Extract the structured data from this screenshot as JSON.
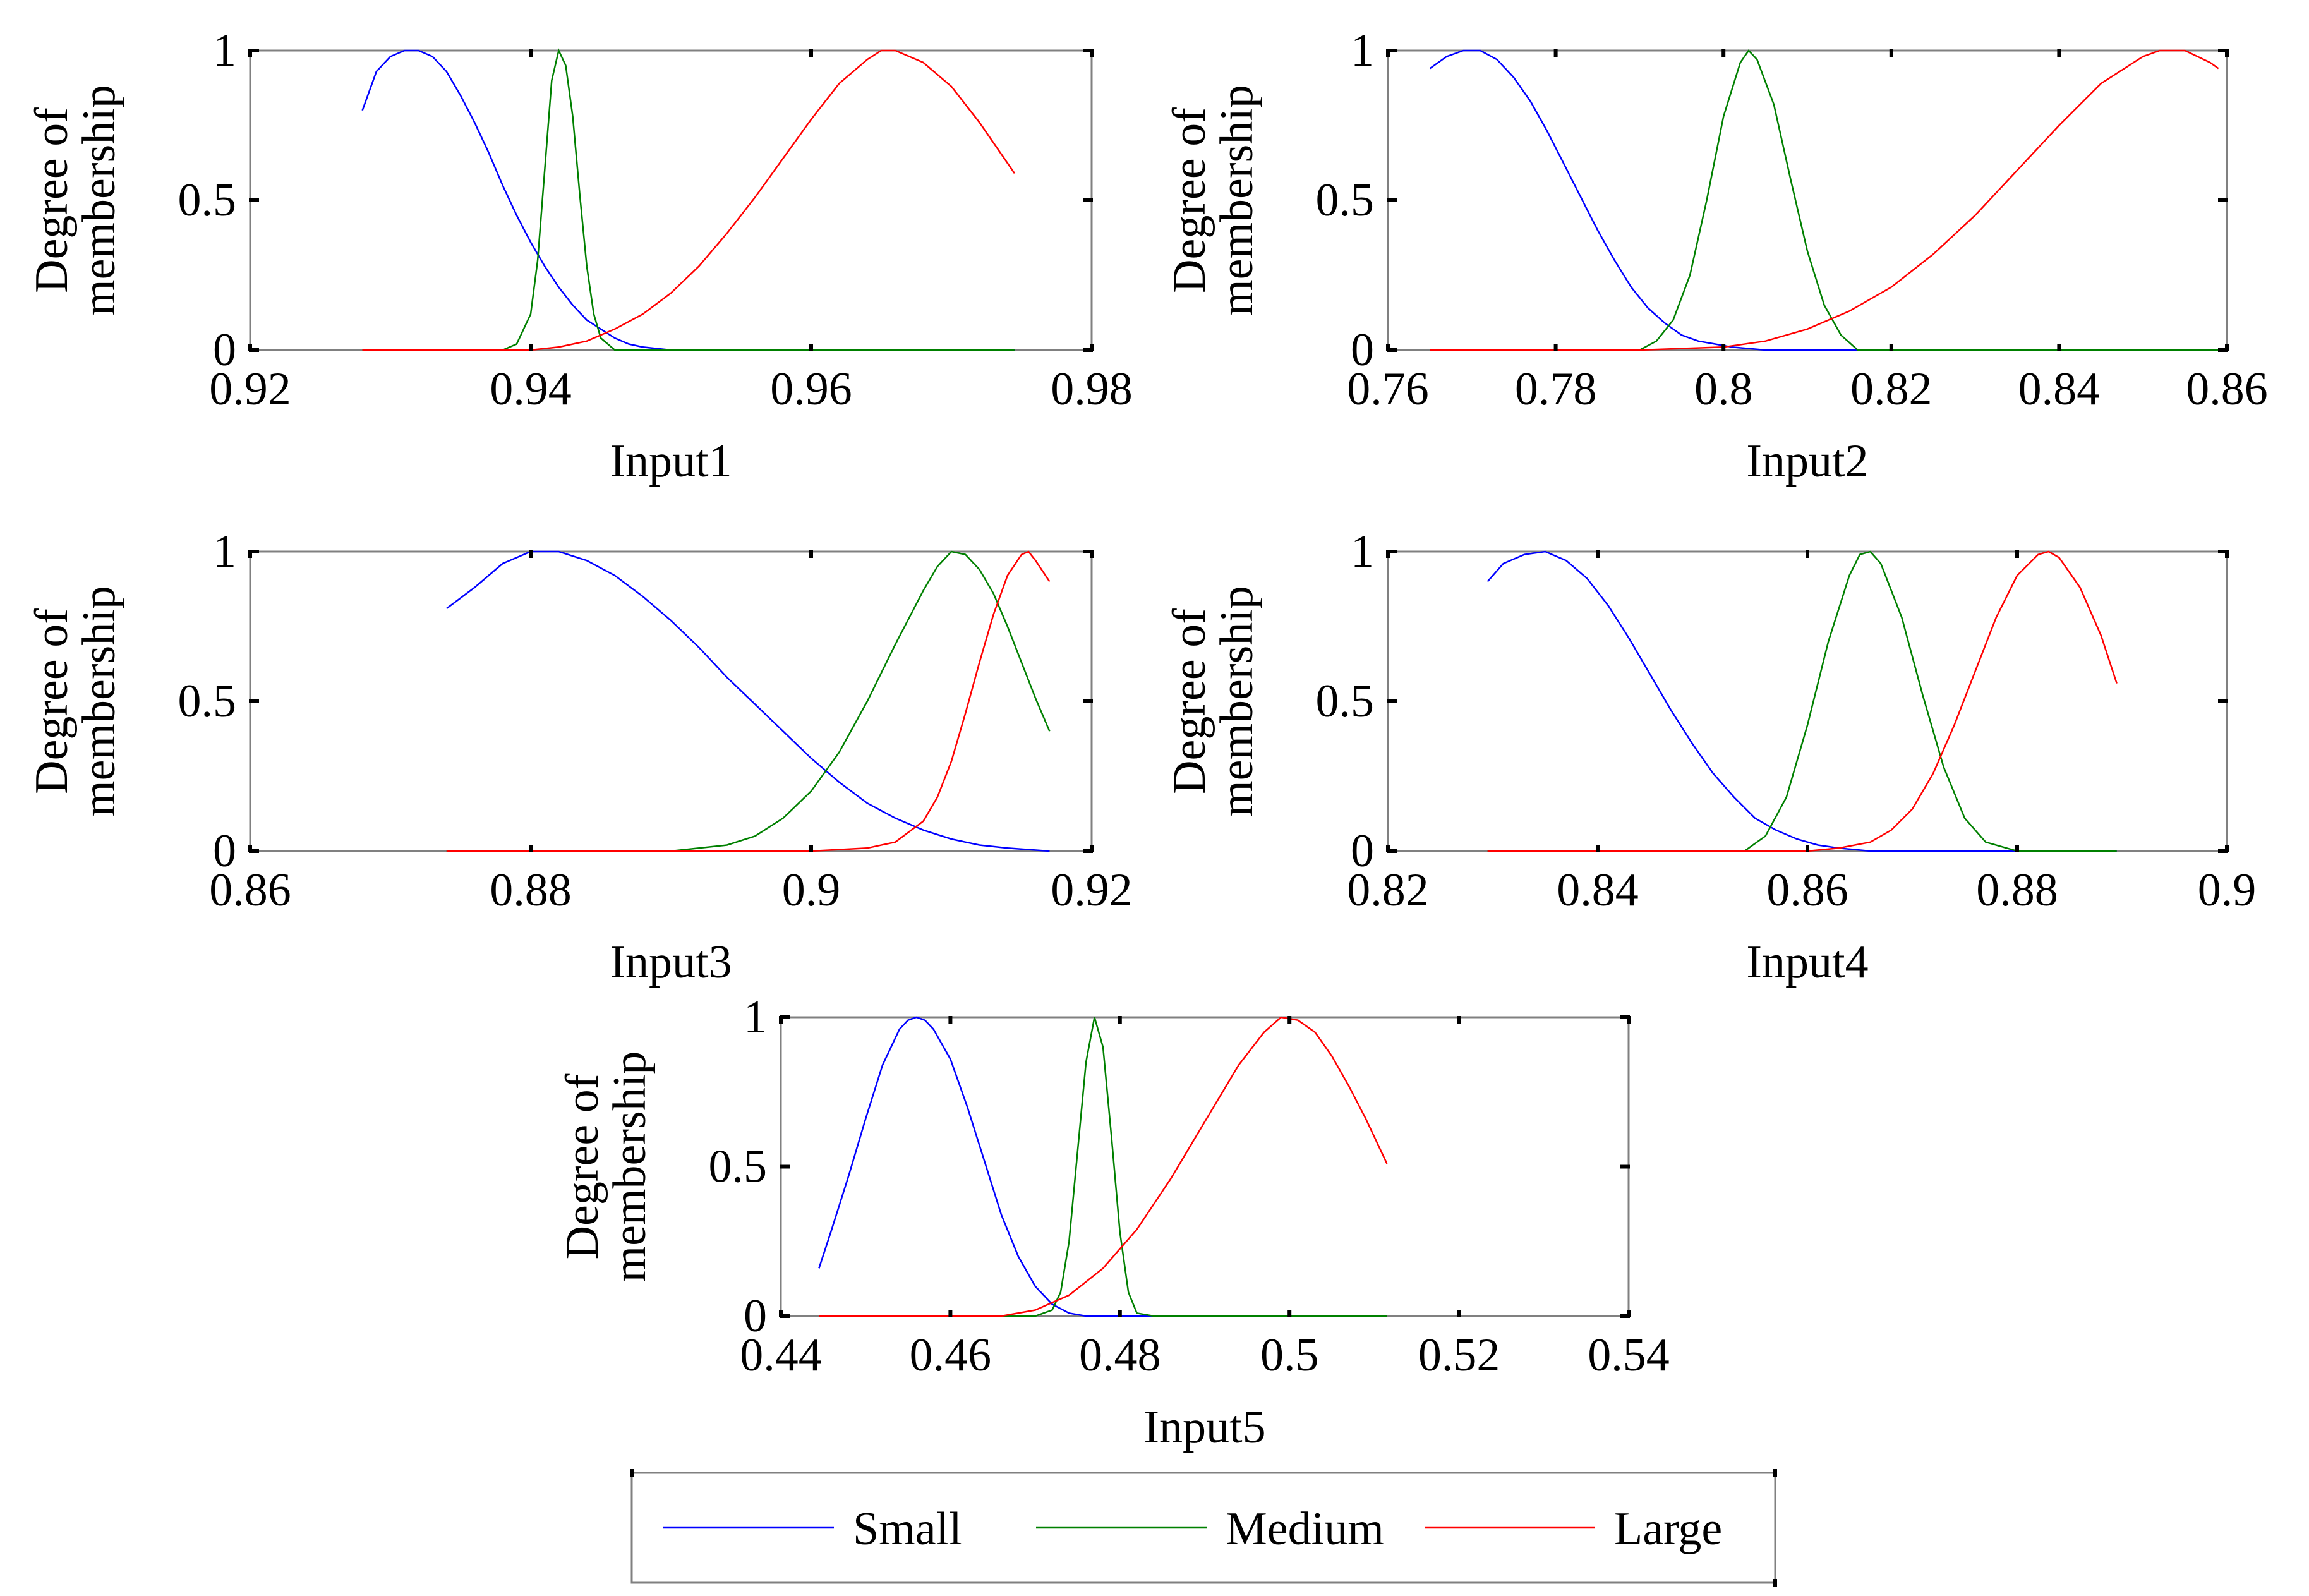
{
  "chart_data": [
    {
      "type": "line",
      "title": "",
      "xlabel": "Input1",
      "ylabel": "Degree of membership",
      "ylabel_lines": [
        "Degree of",
        "membership"
      ],
      "xlim": [
        0.92,
        0.98
      ],
      "ylim": [
        0,
        1
      ],
      "xticks": [
        0.92,
        0.94,
        0.96,
        0.98
      ],
      "xtick_labels": [
        "0.92",
        "0.94",
        "0.96",
        "0.98"
      ],
      "yticks": [
        0,
        0.5,
        1
      ],
      "ytick_labels": [
        "0",
        "0.5",
        "1"
      ],
      "grid": false,
      "series": [
        {
          "name": "Small",
          "x": [
            0.928,
            0.929,
            0.93,
            0.931,
            0.932,
            0.933,
            0.934,
            0.935,
            0.936,
            0.937,
            0.938,
            0.939,
            0.94,
            0.941,
            0.942,
            0.943,
            0.944,
            0.945,
            0.946,
            0.947,
            0.948,
            0.95,
            0.955,
            0.96,
            0.965,
            0.97,
            0.9745
          ],
          "values": [
            0.8,
            0.93,
            0.98,
            1.0,
            1.0,
            0.98,
            0.93,
            0.85,
            0.76,
            0.66,
            0.55,
            0.45,
            0.36,
            0.28,
            0.21,
            0.15,
            0.1,
            0.07,
            0.04,
            0.02,
            0.01,
            0.0,
            0.0,
            0.0,
            0.0,
            0.0,
            0.0
          ]
        },
        {
          "name": "Medium",
          "x": [
            0.928,
            0.935,
            0.938,
            0.939,
            0.94,
            0.9405,
            0.941,
            0.9415,
            0.942,
            0.9425,
            0.943,
            0.9435,
            0.944,
            0.9445,
            0.945,
            0.946,
            0.95,
            0.96,
            0.97,
            0.9745
          ],
          "values": [
            0.0,
            0.0,
            0.0,
            0.02,
            0.12,
            0.3,
            0.6,
            0.9,
            1.0,
            0.95,
            0.78,
            0.52,
            0.28,
            0.12,
            0.04,
            0.0,
            0.0,
            0.0,
            0.0,
            0.0
          ]
        },
        {
          "name": "Large",
          "x": [
            0.928,
            0.935,
            0.94,
            0.942,
            0.944,
            0.946,
            0.948,
            0.95,
            0.952,
            0.954,
            0.956,
            0.958,
            0.96,
            0.962,
            0.964,
            0.965,
            0.966,
            0.968,
            0.97,
            0.972,
            0.9745
          ],
          "values": [
            0.0,
            0.0,
            0.0,
            0.01,
            0.03,
            0.07,
            0.12,
            0.19,
            0.28,
            0.39,
            0.51,
            0.64,
            0.77,
            0.89,
            0.97,
            1.0,
            1.0,
            0.96,
            0.88,
            0.76,
            0.59
          ]
        }
      ]
    },
    {
      "type": "line",
      "title": "",
      "xlabel": "Input2",
      "ylabel": "Degree of membership",
      "ylabel_lines": [
        "Degree of",
        "membership"
      ],
      "xlim": [
        0.76,
        0.86
      ],
      "ylim": [
        0,
        1
      ],
      "xticks": [
        0.76,
        0.78,
        0.8,
        0.82,
        0.84,
        0.86
      ],
      "xtick_labels": [
        "0.76",
        "0.78",
        "0.8",
        "0.82",
        "0.84",
        "0.86"
      ],
      "yticks": [
        0,
        0.5,
        1
      ],
      "ytick_labels": [
        "0",
        "0.5",
        "1"
      ],
      "grid": false,
      "series": [
        {
          "name": "Small",
          "x": [
            0.765,
            0.767,
            0.769,
            0.771,
            0.773,
            0.775,
            0.777,
            0.779,
            0.781,
            0.783,
            0.785,
            0.787,
            0.789,
            0.791,
            0.793,
            0.795,
            0.797,
            0.799,
            0.801,
            0.805,
            0.81,
            0.82,
            0.84,
            0.859
          ],
          "values": [
            0.94,
            0.98,
            1.0,
            1.0,
            0.97,
            0.91,
            0.83,
            0.73,
            0.62,
            0.51,
            0.4,
            0.3,
            0.21,
            0.14,
            0.09,
            0.05,
            0.03,
            0.02,
            0.01,
            0.0,
            0.0,
            0.0,
            0.0,
            0.0
          ]
        },
        {
          "name": "Medium",
          "x": [
            0.765,
            0.785,
            0.79,
            0.792,
            0.794,
            0.796,
            0.798,
            0.8,
            0.802,
            0.803,
            0.804,
            0.806,
            0.808,
            0.81,
            0.812,
            0.814,
            0.816,
            0.83,
            0.859
          ],
          "values": [
            0.0,
            0.0,
            0.0,
            0.03,
            0.1,
            0.25,
            0.5,
            0.78,
            0.96,
            1.0,
            0.97,
            0.82,
            0.57,
            0.33,
            0.15,
            0.05,
            0.0,
            0.0,
            0.0
          ]
        },
        {
          "name": "Large",
          "x": [
            0.765,
            0.79,
            0.795,
            0.8,
            0.805,
            0.81,
            0.815,
            0.82,
            0.825,
            0.83,
            0.835,
            0.84,
            0.845,
            0.85,
            0.852,
            0.855,
            0.858,
            0.859
          ],
          "values": [
            0.0,
            0.0,
            0.005,
            0.01,
            0.03,
            0.07,
            0.13,
            0.21,
            0.32,
            0.45,
            0.6,
            0.75,
            0.89,
            0.98,
            1.0,
            1.0,
            0.96,
            0.94
          ]
        }
      ]
    },
    {
      "type": "line",
      "title": "",
      "xlabel": "Input3",
      "ylabel": "Degree of membership",
      "ylabel_lines": [
        "Degree of",
        "membership"
      ],
      "xlim": [
        0.86,
        0.92
      ],
      "ylim": [
        0,
        1
      ],
      "xticks": [
        0.86,
        0.88,
        0.9,
        0.92
      ],
      "xtick_labels": [
        "0.86",
        "0.88",
        "0.9",
        "0.92"
      ],
      "yticks": [
        0,
        0.5,
        1
      ],
      "ytick_labels": [
        "0",
        "0.5",
        "1"
      ],
      "grid": false,
      "series": [
        {
          "name": "Small",
          "x": [
            0.874,
            0.876,
            0.878,
            0.88,
            0.882,
            0.884,
            0.886,
            0.888,
            0.89,
            0.892,
            0.894,
            0.896,
            0.898,
            0.9,
            0.902,
            0.904,
            0.906,
            0.908,
            0.91,
            0.912,
            0.914,
            0.917
          ],
          "values": [
            0.81,
            0.88,
            0.96,
            1.0,
            1.0,
            0.97,
            0.92,
            0.85,
            0.77,
            0.68,
            0.58,
            0.49,
            0.4,
            0.31,
            0.23,
            0.16,
            0.11,
            0.07,
            0.04,
            0.02,
            0.01,
            0.0
          ]
        },
        {
          "name": "Medium",
          "x": [
            0.874,
            0.89,
            0.894,
            0.896,
            0.898,
            0.9,
            0.902,
            0.904,
            0.906,
            0.908,
            0.909,
            0.91,
            0.911,
            0.912,
            0.913,
            0.914,
            0.915,
            0.916,
            0.917
          ],
          "values": [
            0.0,
            0.0,
            0.02,
            0.05,
            0.11,
            0.2,
            0.33,
            0.5,
            0.69,
            0.87,
            0.95,
            1.0,
            0.99,
            0.94,
            0.86,
            0.75,
            0.63,
            0.51,
            0.4
          ]
        },
        {
          "name": "Large",
          "x": [
            0.874,
            0.9,
            0.904,
            0.906,
            0.908,
            0.909,
            0.91,
            0.911,
            0.912,
            0.913,
            0.914,
            0.915,
            0.9155,
            0.916,
            0.917
          ],
          "values": [
            0.0,
            0.0,
            0.01,
            0.03,
            0.1,
            0.18,
            0.3,
            0.46,
            0.63,
            0.79,
            0.92,
            0.99,
            1.0,
            0.97,
            0.9
          ]
        }
      ]
    },
    {
      "type": "line",
      "title": "",
      "xlabel": "Input4",
      "ylabel": "Degree of membership",
      "ylabel_lines": [
        "Degree of",
        "membership"
      ],
      "xlim": [
        0.82,
        0.9
      ],
      "ylim": [
        0,
        1
      ],
      "xticks": [
        0.82,
        0.84,
        0.86,
        0.88,
        0.9
      ],
      "xtick_labels": [
        "0.82",
        "0.84",
        "0.86",
        "0.88",
        "0.9"
      ],
      "yticks": [
        0,
        0.5,
        1
      ],
      "ytick_labels": [
        "0",
        "0.5",
        "1"
      ],
      "grid": false,
      "series": [
        {
          "name": "Small",
          "x": [
            0.8295,
            0.831,
            0.833,
            0.835,
            0.837,
            0.839,
            0.841,
            0.843,
            0.845,
            0.847,
            0.849,
            0.851,
            0.853,
            0.855,
            0.857,
            0.859,
            0.861,
            0.863,
            0.866,
            0.87,
            0.88,
            0.8895
          ],
          "values": [
            0.9,
            0.96,
            0.99,
            1.0,
            0.97,
            0.91,
            0.82,
            0.71,
            0.59,
            0.47,
            0.36,
            0.26,
            0.18,
            0.11,
            0.07,
            0.04,
            0.02,
            0.01,
            0.0,
            0.0,
            0.0,
            0.0
          ]
        },
        {
          "name": "Medium",
          "x": [
            0.8295,
            0.854,
            0.856,
            0.858,
            0.86,
            0.862,
            0.864,
            0.865,
            0.866,
            0.867,
            0.869,
            0.871,
            0.873,
            0.875,
            0.877,
            0.88,
            0.8895
          ],
          "values": [
            0.0,
            0.0,
            0.05,
            0.18,
            0.42,
            0.7,
            0.92,
            0.99,
            1.0,
            0.96,
            0.78,
            0.52,
            0.28,
            0.11,
            0.03,
            0.0,
            0.0
          ]
        },
        {
          "name": "Large",
          "x": [
            0.8295,
            0.86,
            0.863,
            0.866,
            0.868,
            0.87,
            0.872,
            0.874,
            0.876,
            0.878,
            0.88,
            0.882,
            0.883,
            0.884,
            0.886,
            0.888,
            0.8895
          ],
          "values": [
            0.0,
            0.0,
            0.01,
            0.03,
            0.07,
            0.14,
            0.26,
            0.42,
            0.6,
            0.78,
            0.92,
            0.99,
            1.0,
            0.98,
            0.88,
            0.72,
            0.56
          ]
        }
      ]
    },
    {
      "type": "line",
      "title": "",
      "xlabel": "Input5",
      "ylabel": "Degree of membership",
      "ylabel_lines": [
        "Degree of",
        "membership"
      ],
      "xlim": [
        0.44,
        0.54
      ],
      "ylim": [
        0,
        1
      ],
      "xticks": [
        0.44,
        0.46,
        0.48,
        0.5,
        0.52,
        0.54
      ],
      "xtick_labels": [
        "0.44",
        "0.46",
        "0.48",
        "0.5",
        "0.52",
        "0.54"
      ],
      "yticks": [
        0,
        0.5,
        1
      ],
      "ytick_labels": [
        "0",
        "0.5",
        "1"
      ],
      "grid": false,
      "series": [
        {
          "name": "Small",
          "x": [
            0.4445,
            0.446,
            0.448,
            0.45,
            0.452,
            0.454,
            0.455,
            0.456,
            0.457,
            0.458,
            0.46,
            0.462,
            0.464,
            0.466,
            0.468,
            0.47,
            0.472,
            0.474,
            0.476,
            0.48,
            0.49,
            0.5115
          ],
          "values": [
            0.16,
            0.29,
            0.47,
            0.66,
            0.84,
            0.96,
            0.99,
            1.0,
            0.99,
            0.96,
            0.86,
            0.7,
            0.52,
            0.34,
            0.2,
            0.1,
            0.04,
            0.01,
            0.0,
            0.0,
            0.0,
            0.0
          ]
        },
        {
          "name": "Medium",
          "x": [
            0.4445,
            0.47,
            0.472,
            0.473,
            0.474,
            0.475,
            0.476,
            0.477,
            0.478,
            0.479,
            0.48,
            0.481,
            0.482,
            0.484,
            0.49,
            0.5115
          ],
          "values": [
            0.0,
            0.0,
            0.02,
            0.08,
            0.25,
            0.55,
            0.85,
            1.0,
            0.9,
            0.6,
            0.28,
            0.08,
            0.01,
            0.0,
            0.0,
            0.0
          ]
        },
        {
          "name": "Large",
          "x": [
            0.4445,
            0.466,
            0.47,
            0.474,
            0.478,
            0.482,
            0.486,
            0.49,
            0.494,
            0.497,
            0.499,
            0.501,
            0.503,
            0.505,
            0.507,
            0.509,
            0.5115
          ],
          "values": [
            0.0,
            0.0,
            0.02,
            0.07,
            0.16,
            0.29,
            0.46,
            0.65,
            0.84,
            0.95,
            1.0,
            0.99,
            0.95,
            0.87,
            0.77,
            0.66,
            0.51
          ]
        }
      ]
    }
  ],
  "legend": {
    "placement": "bottom-center",
    "entries": [
      {
        "label": "Small",
        "color": "#0000ff"
      },
      {
        "label": "Medium",
        "color": "#008000"
      },
      {
        "label": "Large",
        "color": "#ff0000"
      }
    ]
  },
  "colors": {
    "Small": "#0000ff",
    "Medium": "#008000",
    "Large": "#ff0000",
    "axis": "#000000",
    "frame": "#808080"
  }
}
